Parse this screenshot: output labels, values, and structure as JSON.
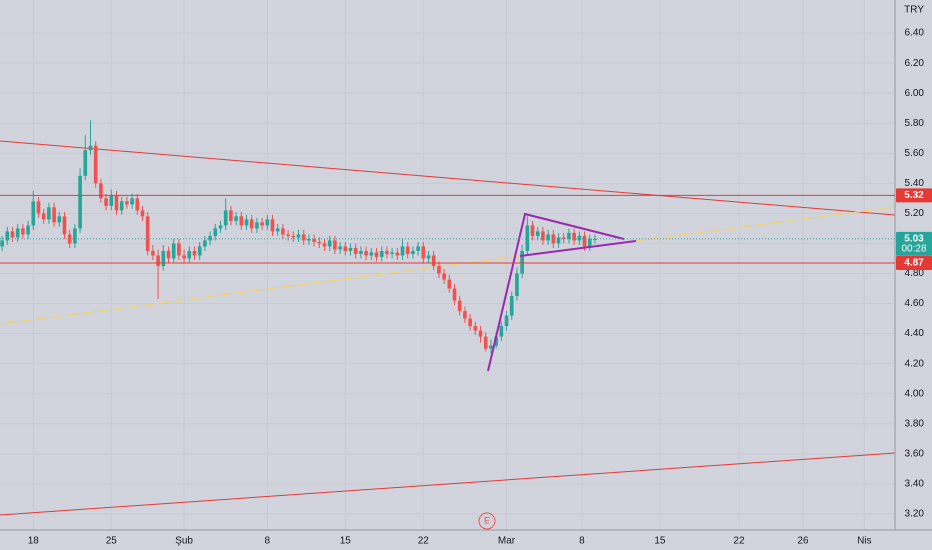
{
  "chart_data": {
    "type": "candlestick",
    "currency": "TRY",
    "event_marker": "E",
    "up_color": "#26a69a",
    "down_color": "#ef5350",
    "grid": true,
    "xlim": [
      -0.4,
      171.7
    ],
    "xticks": [
      {
        "value": 6,
        "label": "18"
      },
      {
        "value": 21,
        "label": "25"
      },
      {
        "value": 35,
        "label": "Şub"
      },
      {
        "value": 51,
        "label": "8"
      },
      {
        "value": 66,
        "label": "15"
      },
      {
        "value": 81,
        "label": "22"
      },
      {
        "value": 97,
        "label": "Mar"
      },
      {
        "value": 111.5,
        "label": "8"
      },
      {
        "value": 126.5,
        "label": "15"
      },
      {
        "value": 141.7,
        "label": "22"
      },
      {
        "value": 154,
        "label": "26"
      },
      {
        "value": 165.8,
        "label": "Nis"
      }
    ],
    "ylim": [
      3.093,
      6.62
    ],
    "yticks": [
      {
        "value": 3.2,
        "label": "3.20"
      },
      {
        "value": 3.4,
        "label": "3.40"
      },
      {
        "value": 3.6,
        "label": "3.60"
      },
      {
        "value": 3.8,
        "label": "3.80"
      },
      {
        "value": 4.0,
        "label": "4.00"
      },
      {
        "value": 4.2,
        "label": "4.20"
      },
      {
        "value": 4.4,
        "label": "4.40"
      },
      {
        "value": 4.6,
        "label": "4.60"
      },
      {
        "value": 4.8,
        "label": "4.80"
      },
      {
        "value": 5.0,
        "label": "5.00"
      },
      {
        "value": 5.2,
        "label": "5.20"
      },
      {
        "value": 5.4,
        "label": "5.40"
      },
      {
        "value": 5.6,
        "label": "5.60"
      },
      {
        "value": 5.8,
        "label": "5.80"
      },
      {
        "value": 6.0,
        "label": "6.00"
      },
      {
        "value": 6.2,
        "label": "6.20"
      },
      {
        "value": 6.4,
        "label": "6.40"
      }
    ],
    "levels": [
      5.32,
      4.87
    ],
    "level_color": "#e53935",
    "last_price": 5.03,
    "countdown": "00:28",
    "last_color": "#26a69a",
    "open": [
      4.98,
      5.02,
      5.08,
      5.04,
      5.1,
      5.06,
      5.12,
      5.28,
      5.2,
      5.16,
      5.24,
      5.14,
      5.18,
      5.06,
      5.0,
      5.1,
      5.45,
      5.62,
      5.65,
      5.4,
      5.3,
      5.25,
      5.32,
      5.22,
      5.28,
      5.26,
      5.3,
      5.22,
      5.18,
      4.95,
      4.92,
      4.85,
      4.95,
      4.9,
      5.0,
      4.92,
      4.9,
      4.95,
      4.92,
      4.98,
      5.02,
      5.05,
      5.1,
      5.12,
      5.22,
      5.15,
      5.18,
      5.12,
      5.16,
      5.1,
      5.14,
      5.12,
      5.16,
      5.08,
      5.1,
      5.06,
      5.05,
      5.04,
      5.06,
      5.02,
      5.03,
      5.01,
      5.0,
      4.98,
      5.02,
      4.96,
      4.98,
      4.95,
      4.97,
      4.93,
      4.95,
      4.92,
      4.94,
      4.91,
      4.95,
      4.93,
      4.94,
      4.92,
      4.98,
      4.93,
      4.95,
      4.98,
      4.9,
      4.92,
      4.85,
      4.8,
      4.76,
      4.7,
      4.62,
      4.55,
      4.5,
      4.45,
      4.42,
      4.38,
      4.3,
      4.32,
      4.38,
      4.45,
      4.52,
      4.65,
      4.8,
      4.95,
      5.12,
      5.05,
      5.08,
      5.02,
      5.06,
      5.0,
      5.04,
      5.03,
      5.07,
      5.02,
      5.05,
      4.98,
      5.03
    ],
    "high": [
      5.05,
      5.11,
      5.11,
      5.13,
      5.13,
      5.15,
      5.35,
      5.31,
      5.23,
      5.27,
      5.27,
      5.21,
      5.21,
      5.09,
      5.13,
      5.5,
      5.72,
      5.82,
      5.68,
      5.43,
      5.33,
      5.36,
      5.35,
      5.31,
      5.31,
      5.33,
      5.33,
      5.25,
      5.21,
      4.99,
      4.96,
      4.99,
      4.98,
      5.03,
      5.03,
      4.96,
      4.98,
      4.98,
      5.01,
      5.05,
      5.08,
      5.13,
      5.15,
      5.3,
      5.25,
      5.21,
      5.21,
      5.19,
      5.19,
      5.17,
      5.17,
      5.19,
      5.19,
      5.13,
      5.13,
      5.09,
      5.08,
      5.09,
      5.09,
      5.06,
      5.06,
      5.04,
      5.03,
      5.05,
      5.05,
      5.01,
      5.01,
      5.0,
      5.0,
      4.98,
      4.98,
      4.97,
      4.97,
      4.98,
      4.98,
      4.97,
      4.97,
      5.03,
      5.01,
      4.98,
      5.01,
      5.01,
      4.95,
      4.95,
      4.88,
      4.83,
      4.79,
      4.73,
      4.65,
      4.58,
      4.53,
      4.48,
      4.45,
      4.41,
      4.36,
      4.41,
      4.48,
      4.55,
      4.68,
      4.84,
      4.99,
      5.18,
      5.15,
      5.11,
      5.11,
      5.09,
      5.09,
      5.07,
      5.07,
      5.1,
      5.1,
      5.08,
      5.08,
      5.06,
      5.06
    ],
    "low": [
      4.95,
      4.99,
      5.01,
      5.01,
      5.03,
      5.03,
      5.09,
      5.17,
      5.13,
      5.13,
      5.11,
      5.11,
      5.03,
      4.97,
      4.97,
      5.07,
      5.42,
      5.59,
      5.37,
      5.27,
      5.22,
      5.22,
      5.19,
      5.19,
      5.23,
      5.23,
      5.19,
      5.15,
      4.92,
      4.89,
      4.63,
      4.82,
      4.87,
      4.87,
      4.89,
      4.87,
      4.87,
      4.89,
      4.89,
      4.95,
      4.99,
      5.02,
      5.07,
      5.09,
      5.12,
      5.12,
      5.09,
      5.09,
      5.07,
      5.07,
      5.09,
      5.09,
      5.05,
      5.05,
      5.03,
      5.02,
      5.01,
      5.01,
      4.99,
      4.99,
      4.98,
      4.97,
      4.95,
      4.95,
      4.93,
      4.93,
      4.92,
      4.92,
      4.9,
      4.9,
      4.89,
      4.89,
      4.88,
      4.88,
      4.9,
      4.9,
      4.89,
      4.89,
      4.9,
      4.9,
      4.92,
      4.87,
      4.87,
      4.82,
      4.77,
      4.73,
      4.67,
      4.59,
      4.52,
      4.47,
      4.42,
      4.39,
      4.34,
      4.28,
      4.27,
      4.3,
      4.35,
      4.42,
      4.49,
      4.62,
      4.77,
      4.92,
      5.02,
      5.02,
      4.99,
      4.99,
      4.97,
      4.97,
      5.0,
      5.0,
      4.99,
      4.99,
      4.95,
      4.95,
      5.0
    ],
    "close": [
      5.02,
      5.08,
      5.04,
      5.1,
      5.06,
      5.12,
      5.28,
      5.2,
      5.16,
      5.24,
      5.14,
      5.18,
      5.06,
      5.0,
      5.1,
      5.45,
      5.62,
      5.65,
      5.4,
      5.3,
      5.25,
      5.32,
      5.22,
      5.28,
      5.26,
      5.3,
      5.22,
      5.18,
      4.95,
      4.92,
      4.85,
      4.95,
      4.9,
      5.0,
      4.92,
      4.9,
      4.95,
      4.92,
      4.98,
      5.02,
      5.05,
      5.1,
      5.12,
      5.22,
      5.15,
      5.18,
      5.12,
      5.16,
      5.1,
      5.14,
      5.12,
      5.16,
      5.08,
      5.1,
      5.06,
      5.05,
      5.04,
      5.06,
      5.02,
      5.03,
      5.01,
      5.0,
      4.98,
      5.02,
      4.96,
      4.98,
      4.95,
      4.97,
      4.93,
      4.95,
      4.92,
      4.94,
      4.91,
      4.95,
      4.93,
      4.94,
      4.92,
      4.98,
      4.93,
      4.95,
      4.98,
      4.9,
      4.92,
      4.85,
      4.8,
      4.76,
      4.7,
      4.62,
      4.55,
      4.5,
      4.45,
      4.42,
      4.38,
      4.3,
      4.32,
      4.38,
      4.45,
      4.52,
      4.65,
      4.8,
      4.95,
      5.12,
      5.05,
      5.08,
      5.02,
      5.06,
      5.0,
      5.04,
      5.03,
      5.07,
      5.02,
      5.05,
      4.98,
      5.03,
      5.03
    ]
  }
}
